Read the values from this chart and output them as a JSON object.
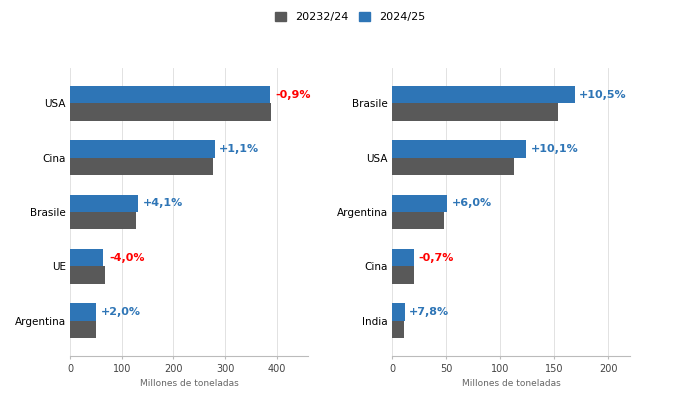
{
  "legend_labels": [
    "20232/24",
    "2024/25"
  ],
  "legend_colors": [
    "#595959",
    "#2E75B6"
  ],
  "corn": {
    "categories": [
      "USA",
      "Cina",
      "Brasile",
      "UE",
      "Argentina"
    ],
    "values_2023": [
      389,
      277,
      127,
      67,
      50
    ],
    "values_2024": [
      386,
      280,
      132,
      64,
      51
    ],
    "pct_labels": [
      "-0,9%",
      "+1,1%",
      "+4,1%",
      "-4,0%",
      "+2,0%"
    ],
    "pct_colors": [
      "#FF0000",
      "#2E75B6",
      "#2E75B6",
      "#FF0000",
      "#2E75B6"
    ],
    "xlim": [
      0,
      460
    ],
    "xticks": [
      0,
      100,
      200,
      300,
      400
    ],
    "xlabel": "Millones de toneladas"
  },
  "soy": {
    "categories": [
      "Brasile",
      "USA",
      "Argentina",
      "Cina",
      "India"
    ],
    "values_2023": [
      153,
      113,
      48,
      20,
      11
    ],
    "values_2024": [
      169,
      124,
      51,
      20,
      12
    ],
    "pct_labels": [
      "+10,5%",
      "+10,1%",
      "+6,0%",
      "-0,7%",
      "+7,8%"
    ],
    "pct_colors": [
      "#2E75B6",
      "#2E75B6",
      "#2E75B6",
      "#FF0000",
      "#2E75B6"
    ],
    "xlim": [
      0,
      220
    ],
    "xticks": [
      0,
      50,
      100,
      150,
      200
    ],
    "xlabel": "Millones de toneladas"
  },
  "background_color": "#FFFFFF",
  "bar_height": 0.32,
  "color_2023": "#595959",
  "color_2024": "#2E75B6",
  "tick_fontsize": 7.5,
  "pct_fontsize": 8,
  "xlabel_fontsize": 6.5,
  "legend_fontsize": 8
}
